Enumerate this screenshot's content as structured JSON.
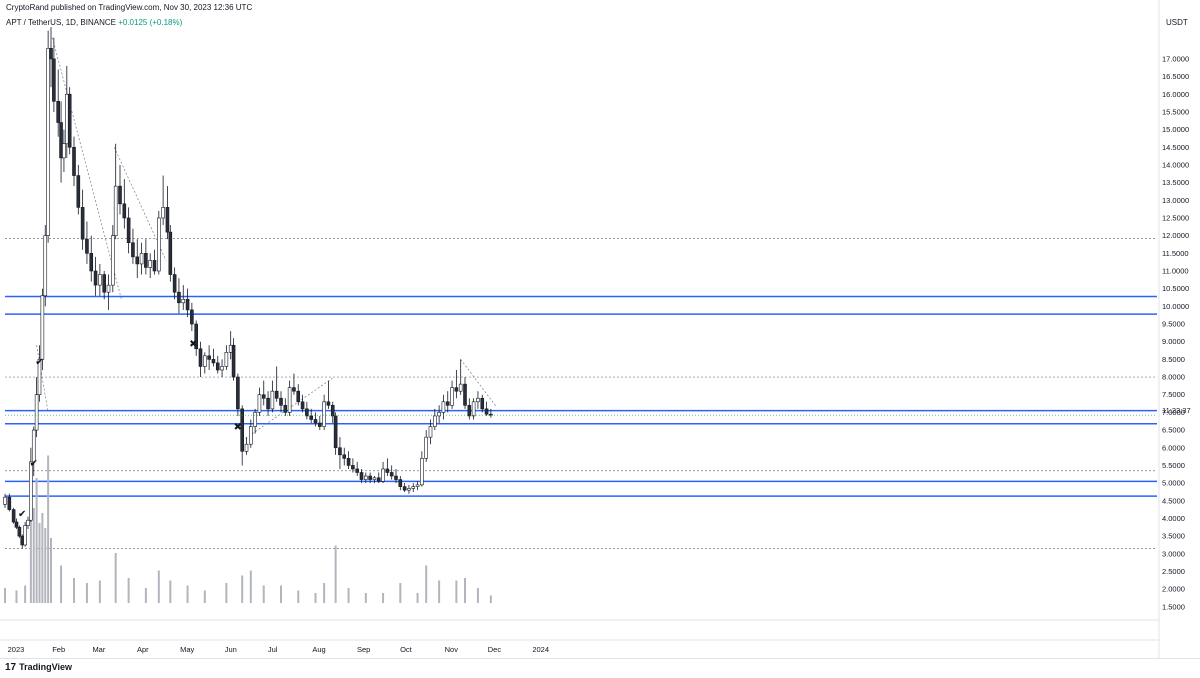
{
  "header": {
    "published": "CryptoRand published on TradingView.com, Nov 30, 2023 12:36 UTC",
    "symbol_legend": "APT / TetherUS, 1D, BINANCE",
    "change": "+0.0125 (+0.18%)",
    "currency": "USDT"
  },
  "footer": {
    "brand": "TradingView",
    "logo_mark": "17"
  },
  "countdown_label": "11:23:37",
  "colors": {
    "up": "#ffffff",
    "down": "#2a2e39",
    "wick": "#131722",
    "blue_level": "#2962ff",
    "grey_level": "#787b86",
    "volume": "#b2b5be",
    "bg": "#ffffff"
  },
  "markers": [
    {
      "symbol": "✔",
      "date": "2023-01-19",
      "price": 8.42
    },
    {
      "symbol": "✔",
      "date": "2023-01-15",
      "price": 5.55
    },
    {
      "symbol": "✔",
      "date": "2023-01-07",
      "price": 4.13
    },
    {
      "symbol": "✖",
      "date": "2023-05-06",
      "price": 8.94
    },
    {
      "symbol": "✖",
      "date": "2023-06-06",
      "price": 6.58
    }
  ],
  "chart_data": {
    "type": "candlestick",
    "symbol": "APT / TetherUS",
    "interval": "1D",
    "exchange": "BINANCE",
    "y_axis": {
      "position": "right",
      "ticks": [
        "1.5000",
        "2.0000",
        "2.5000",
        "3.0000",
        "3.5000",
        "4.0000",
        "4.5000",
        "5.0000",
        "5.5000",
        "6.0000",
        "6.5000",
        "7.0000",
        "7.5000",
        "8.0000",
        "8.5000",
        "9.0000",
        "9.5000",
        "10.0000",
        "10.5000",
        "11.0000",
        "11.5000",
        "12.0000",
        "12.5000",
        "13.0000",
        "13.5000",
        "14.0000",
        "14.5000",
        "15.0000",
        "15.5000",
        "16.0000",
        "16.5000",
        "17.0000"
      ],
      "range": [
        1.5,
        17.3
      ]
    },
    "x_axis": {
      "ticks": [
        "2023",
        "Feb",
        "Mar",
        "Apr",
        "May",
        "Jun",
        "Jul",
        "Aug",
        "Sep",
        "Oct",
        "Nov",
        "Dec",
        "2024"
      ],
      "range": [
        "2022-12-26",
        "2024-01-20"
      ]
    },
    "last_price": "6.9225",
    "horizontal_levels_blue": [
      10.28,
      9.78,
      7.05,
      6.68,
      5.05,
      4.63
    ],
    "horizontal_levels_dotted": [
      11.92,
      8.0,
      5.35,
      3.15
    ],
    "trend_lines_dotted": [
      {
        "from": {
          "date": "2023-01-28",
          "price": 17.6
        },
        "to": {
          "date": "2023-03-17",
          "price": 10.2
        }
      },
      {
        "from": {
          "date": "2023-03-12",
          "price": 14.5
        },
        "to": {
          "date": "2023-04-17",
          "price": 11.3
        }
      },
      {
        "from": {
          "date": "2023-06-09",
          "price": 6.2
        },
        "to": {
          "date": "2023-08-12",
          "price": 8.0
        }
      },
      {
        "from": {
          "date": "2023-11-08",
          "price": 8.5
        },
        "to": {
          "date": "2023-12-03",
          "price": 7.15
        }
      },
      {
        "from": {
          "date": "2023-01-17",
          "price": 8.9
        },
        "to": {
          "date": "2023-01-25",
          "price": 7.0
        }
      }
    ],
    "candles": [
      [
        "2022-12-26",
        4.4,
        4.7,
        4.3,
        4.6
      ],
      [
        "2022-12-29",
        4.6,
        4.7,
        4.2,
        4.25
      ],
      [
        "2023-01-01",
        4.25,
        4.3,
        3.85,
        3.9
      ],
      [
        "2023-01-03",
        3.9,
        4.0,
        3.7,
        3.75
      ],
      [
        "2023-01-05",
        3.75,
        3.8,
        3.45,
        3.5
      ],
      [
        "2023-01-07",
        3.5,
        3.55,
        3.15,
        3.25
      ],
      [
        "2023-01-09",
        3.25,
        3.9,
        3.2,
        3.8
      ],
      [
        "2023-01-11",
        3.8,
        4.05,
        3.7,
        3.95
      ],
      [
        "2023-01-13",
        3.95,
        6.0,
        3.9,
        5.6
      ],
      [
        "2023-01-15",
        5.6,
        6.6,
        5.2,
        6.5
      ],
      [
        "2023-01-17",
        6.5,
        8.0,
        6.3,
        7.5
      ],
      [
        "2023-01-19",
        7.5,
        8.9,
        7.3,
        8.5
      ],
      [
        "2023-01-21",
        8.5,
        10.5,
        8.2,
        10.3
      ],
      [
        "2023-01-23",
        10.3,
        12.3,
        10.0,
        12.0
      ],
      [
        "2023-01-25",
        12.0,
        17.8,
        11.8,
        17.3
      ],
      [
        "2023-01-27",
        17.3,
        17.9,
        16.2,
        17.0
      ],
      [
        "2023-01-29",
        17.0,
        17.6,
        15.5,
        15.8
      ],
      [
        "2023-02-01",
        15.8,
        16.7,
        14.8,
        15.2
      ],
      [
        "2023-02-03",
        15.2,
        15.8,
        13.5,
        14.2
      ],
      [
        "2023-02-05",
        14.2,
        15.0,
        13.8,
        14.6
      ],
      [
        "2023-02-07",
        14.6,
        16.8,
        14.2,
        16.0
      ],
      [
        "2023-02-09",
        16.0,
        16.2,
        14.3,
        14.5
      ],
      [
        "2023-02-12",
        14.5,
        14.8,
        13.4,
        13.7
      ],
      [
        "2023-02-15",
        13.7,
        14.0,
        12.6,
        12.8
      ],
      [
        "2023-02-18",
        12.8,
        13.3,
        11.6,
        11.9
      ],
      [
        "2023-02-21",
        11.9,
        12.4,
        11.2,
        11.5
      ],
      [
        "2023-02-24",
        11.5,
        12.0,
        10.7,
        11.0
      ],
      [
        "2023-02-27",
        11.0,
        11.4,
        10.3,
        10.6
      ],
      [
        "2023-03-02",
        10.6,
        11.2,
        10.3,
        10.9
      ],
      [
        "2023-03-05",
        10.9,
        11.0,
        10.2,
        10.4
      ],
      [
        "2023-03-08",
        10.4,
        10.9,
        9.9,
        10.6
      ],
      [
        "2023-03-11",
        10.6,
        12.3,
        10.4,
        12.0
      ],
      [
        "2023-03-13",
        12.0,
        14.6,
        11.9,
        13.4
      ],
      [
        "2023-03-16",
        13.4,
        14.0,
        12.6,
        12.9
      ],
      [
        "2023-03-19",
        12.9,
        13.6,
        12.2,
        12.5
      ],
      [
        "2023-03-22",
        12.5,
        12.8,
        11.5,
        11.8
      ],
      [
        "2023-03-25",
        11.8,
        12.2,
        11.2,
        11.4
      ],
      [
        "2023-03-28",
        11.4,
        11.9,
        10.8,
        11.2
      ],
      [
        "2023-03-31",
        11.2,
        11.8,
        10.9,
        11.5
      ],
      [
        "2023-04-03",
        11.5,
        11.9,
        10.9,
        11.1
      ],
      [
        "2023-04-06",
        11.1,
        11.5,
        10.8,
        11.3
      ],
      [
        "2023-04-09",
        11.3,
        11.6,
        10.9,
        11.0
      ],
      [
        "2023-04-12",
        11.0,
        12.7,
        10.9,
        12.5
      ],
      [
        "2023-04-15",
        12.5,
        13.7,
        12.3,
        12.8
      ],
      [
        "2023-04-18",
        12.8,
        13.4,
        11.9,
        12.1
      ],
      [
        "2023-04-20",
        12.1,
        12.3,
        10.7,
        10.9
      ],
      [
        "2023-04-23",
        10.9,
        11.1,
        10.2,
        10.4
      ],
      [
        "2023-04-26",
        10.4,
        10.8,
        9.8,
        10.1
      ],
      [
        "2023-04-29",
        10.1,
        10.6,
        9.9,
        10.2
      ],
      [
        "2023-05-02",
        10.2,
        10.5,
        9.7,
        9.9
      ],
      [
        "2023-05-05",
        9.9,
        10.1,
        9.3,
        9.5
      ],
      [
        "2023-05-08",
        9.5,
        9.6,
        8.6,
        8.8
      ],
      [
        "2023-05-11",
        8.8,
        9.0,
        8.0,
        8.3
      ],
      [
        "2023-05-14",
        8.3,
        8.7,
        8.1,
        8.6
      ],
      [
        "2023-05-17",
        8.6,
        8.9,
        8.2,
        8.5
      ],
      [
        "2023-05-20",
        8.5,
        8.8,
        8.3,
        8.4
      ],
      [
        "2023-05-23",
        8.4,
        8.6,
        8.1,
        8.2
      ],
      [
        "2023-05-26",
        8.2,
        8.5,
        8.0,
        8.3
      ],
      [
        "2023-05-29",
        8.3,
        8.9,
        8.2,
        8.7
      ],
      [
        "2023-06-01",
        8.7,
        9.3,
        8.5,
        8.9
      ],
      [
        "2023-06-03",
        8.9,
        9.1,
        7.9,
        8.0
      ],
      [
        "2023-06-06",
        8.0,
        8.1,
        6.9,
        7.1
      ],
      [
        "2023-06-09",
        7.1,
        7.2,
        5.5,
        5.9
      ],
      [
        "2023-06-12",
        5.9,
        6.3,
        5.8,
        6.1
      ],
      [
        "2023-06-15",
        6.1,
        6.8,
        6.0,
        6.6
      ],
      [
        "2023-06-18",
        6.6,
        7.1,
        6.4,
        7.0
      ],
      [
        "2023-06-21",
        7.0,
        7.7,
        6.9,
        7.5
      ],
      [
        "2023-06-24",
        7.5,
        7.9,
        7.2,
        7.4
      ],
      [
        "2023-06-27",
        7.4,
        7.6,
        6.9,
        7.1
      ],
      [
        "2023-06-30",
        7.1,
        7.9,
        7.0,
        7.6
      ],
      [
        "2023-07-03",
        7.6,
        8.3,
        7.3,
        7.4
      ],
      [
        "2023-07-06",
        7.4,
        7.6,
        7.0,
        7.2
      ],
      [
        "2023-07-09",
        7.2,
        7.4,
        6.9,
        7.0
      ],
      [
        "2023-07-12",
        7.0,
        7.9,
        6.9,
        7.7
      ],
      [
        "2023-07-15",
        7.7,
        8.1,
        7.5,
        7.6
      ],
      [
        "2023-07-18",
        7.6,
        7.8,
        7.2,
        7.3
      ],
      [
        "2023-07-21",
        7.3,
        7.5,
        7.0,
        7.1
      ],
      [
        "2023-07-24",
        7.1,
        7.3,
        6.8,
        6.9
      ],
      [
        "2023-07-27",
        6.9,
        7.1,
        6.7,
        6.8
      ],
      [
        "2023-07-30",
        6.8,
        7.0,
        6.6,
        6.7
      ],
      [
        "2023-08-02",
        6.7,
        6.9,
        6.5,
        6.6
      ],
      [
        "2023-08-05",
        6.6,
        7.5,
        6.5,
        7.3
      ],
      [
        "2023-08-08",
        7.3,
        7.9,
        7.1,
        7.2
      ],
      [
        "2023-08-11",
        7.2,
        7.3,
        6.7,
        6.9
      ],
      [
        "2023-08-13",
        6.9,
        7.0,
        5.8,
        6.0
      ],
      [
        "2023-08-16",
        6.0,
        6.3,
        5.4,
        5.8
      ],
      [
        "2023-08-19",
        5.8,
        6.0,
        5.5,
        5.7
      ],
      [
        "2023-08-22",
        5.7,
        5.9,
        5.4,
        5.5
      ],
      [
        "2023-08-25",
        5.5,
        5.7,
        5.3,
        5.4
      ],
      [
        "2023-08-28",
        5.4,
        5.6,
        5.2,
        5.3
      ],
      [
        "2023-08-31",
        5.3,
        5.4,
        5.0,
        5.1
      ],
      [
        "2023-09-03",
        5.1,
        5.3,
        5.0,
        5.2
      ],
      [
        "2023-09-06",
        5.2,
        5.3,
        5.0,
        5.1
      ],
      [
        "2023-09-09",
        5.1,
        5.2,
        5.0,
        5.15
      ],
      [
        "2023-09-12",
        5.15,
        5.3,
        5.0,
        5.05
      ],
      [
        "2023-09-15",
        5.05,
        5.6,
        5.0,
        5.4
      ],
      [
        "2023-09-18",
        5.4,
        5.7,
        5.2,
        5.3
      ],
      [
        "2023-09-21",
        5.3,
        5.5,
        5.1,
        5.2
      ],
      [
        "2023-09-24",
        5.2,
        5.4,
        5.0,
        5.1
      ],
      [
        "2023-09-27",
        5.1,
        5.2,
        4.8,
        4.9
      ],
      [
        "2023-09-30",
        4.9,
        5.0,
        4.75,
        4.8
      ],
      [
        "2023-10-03",
        4.8,
        4.95,
        4.7,
        4.85
      ],
      [
        "2023-10-06",
        4.85,
        5.0,
        4.75,
        4.9
      ],
      [
        "2023-10-09",
        4.9,
        5.05,
        4.8,
        4.95
      ],
      [
        "2023-10-12",
        4.95,
        5.9,
        4.9,
        5.7
      ],
      [
        "2023-10-15",
        5.7,
        6.5,
        5.6,
        6.3
      ],
      [
        "2023-10-18",
        6.3,
        6.8,
        6.1,
        6.6
      ],
      [
        "2023-10-21",
        6.6,
        7.1,
        6.5,
        6.9
      ],
      [
        "2023-10-24",
        6.9,
        7.2,
        6.7,
        7.0
      ],
      [
        "2023-10-27",
        7.0,
        7.5,
        6.8,
        7.3
      ],
      [
        "2023-10-30",
        7.3,
        7.6,
        7.0,
        7.2
      ],
      [
        "2023-11-02",
        7.2,
        7.9,
        7.1,
        7.7
      ],
      [
        "2023-11-05",
        7.7,
        8.2,
        7.4,
        7.6
      ],
      [
        "2023-11-08",
        7.6,
        8.5,
        7.5,
        7.8
      ],
      [
        "2023-11-11",
        7.8,
        8.0,
        7.1,
        7.2
      ],
      [
        "2023-11-14",
        7.2,
        7.4,
        6.8,
        6.9
      ],
      [
        "2023-11-17",
        6.9,
        7.4,
        6.8,
        7.3
      ],
      [
        "2023-11-20",
        7.3,
        7.6,
        7.1,
        7.4
      ],
      [
        "2023-11-23",
        7.4,
        7.5,
        7.0,
        7.1
      ],
      [
        "2023-11-26",
        7.1,
        7.3,
        6.9,
        6.95
      ],
      [
        "2023-11-29",
        6.95,
        7.1,
        6.85,
        6.92
      ]
    ],
    "volume": [
      [
        "2022-12-26",
        0.6
      ],
      [
        "2023-01-03",
        0.5
      ],
      [
        "2023-01-09",
        0.7
      ],
      [
        "2023-01-13",
        4.2
      ],
      [
        "2023-01-15",
        3.8
      ],
      [
        "2023-01-17",
        5.0
      ],
      [
        "2023-01-19",
        3.2
      ],
      [
        "2023-01-21",
        3.6
      ],
      [
        "2023-01-23",
        3.0
      ],
      [
        "2023-01-25",
        5.9
      ],
      [
        "2023-01-27",
        2.6
      ],
      [
        "2023-02-03",
        1.5
      ],
      [
        "2023-02-12",
        1.0
      ],
      [
        "2023-02-21",
        0.8
      ],
      [
        "2023-03-02",
        0.9
      ],
      [
        "2023-03-13",
        2.0
      ],
      [
        "2023-03-22",
        1.0
      ],
      [
        "2023-04-03",
        0.6
      ],
      [
        "2023-04-12",
        1.3
      ],
      [
        "2023-04-20",
        0.9
      ],
      [
        "2023-05-02",
        0.7
      ],
      [
        "2023-05-14",
        0.5
      ],
      [
        "2023-05-29",
        0.8
      ],
      [
        "2023-06-09",
        1.1
      ],
      [
        "2023-06-15",
        1.3
      ],
      [
        "2023-06-24",
        0.7
      ],
      [
        "2023-07-06",
        0.7
      ],
      [
        "2023-07-18",
        0.5
      ],
      [
        "2023-07-30",
        0.4
      ],
      [
        "2023-08-05",
        0.8
      ],
      [
        "2023-08-13",
        2.3
      ],
      [
        "2023-08-22",
        0.6
      ],
      [
        "2023-09-03",
        0.4
      ],
      [
        "2023-09-15",
        0.4
      ],
      [
        "2023-09-27",
        0.8
      ],
      [
        "2023-10-09",
        0.4
      ],
      [
        "2023-10-15",
        1.5
      ],
      [
        "2023-10-24",
        0.9
      ],
      [
        "2023-11-05",
        0.9
      ],
      [
        "2023-11-11",
        1.0
      ],
      [
        "2023-11-20",
        0.6
      ],
      [
        "2023-11-29",
        0.3
      ]
    ]
  }
}
